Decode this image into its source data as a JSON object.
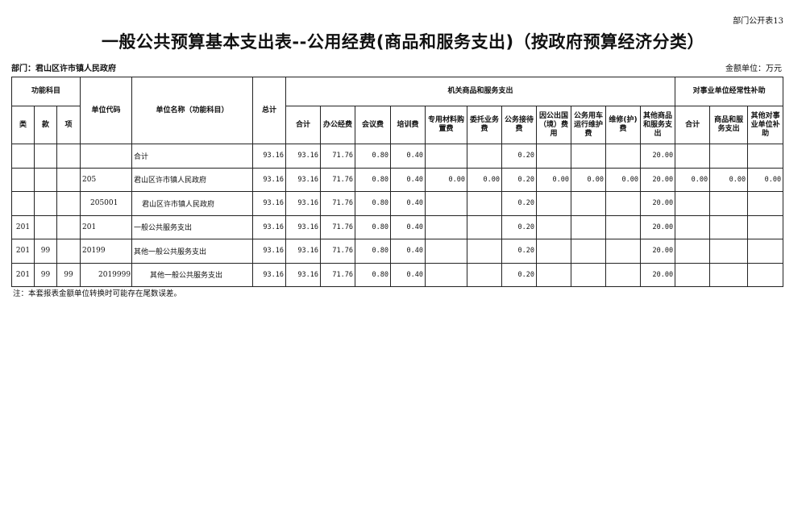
{
  "form_no": "部门公开表13",
  "title": "一般公共预算基本支出表--公用经费(商品和服务支出)（按政府预算经济分类）",
  "department": "部门：君山区许市镇人民政府",
  "unit": "金额单位：万元",
  "headers": {
    "func_subject": "功能科目",
    "lei": "类",
    "kuan": "款",
    "xiang": "项",
    "unit_code": "单位代码",
    "unit_name": "单位名称（功能科目）",
    "total": "总计",
    "group1": "机关商品和服务支出",
    "group2": "对事业单位经常性补助",
    "cols1": [
      "合计",
      "办公经费",
      "会议费",
      "培训费",
      "专用材料购置费",
      "委托业务费",
      "公务接待费",
      "因公出国（境）费用",
      "公务用车运行维护费",
      "维修(护)费",
      "其他商品和服务支出"
    ],
    "cols2": [
      "合计",
      "商品和服务支出",
      "其他对事业单位补助"
    ]
  },
  "rows": [
    {
      "lei": "",
      "kuan": "",
      "xiang": "",
      "code": "",
      "name": "合计",
      "indent": 0,
      "values": [
        "93.16",
        "93.16",
        "71.76",
        "0.80",
        "0.40",
        "",
        "",
        "0.20",
        "",
        "",
        "",
        "20.00",
        "",
        "",
        ""
      ]
    },
    {
      "lei": "",
      "kuan": "",
      "xiang": "",
      "code": "205",
      "name": "君山区许市镇人民政府",
      "indent": 0,
      "values": [
        "93.16",
        "93.16",
        "71.76",
        "0.80",
        "0.40",
        "0.00",
        "0.00",
        "0.20",
        "0.00",
        "0.00",
        "0.00",
        "20.00",
        "0.00",
        "0.00",
        "0.00"
      ]
    },
    {
      "lei": "",
      "kuan": "",
      "xiang": "",
      "code": "205001",
      "name": "君山区许市镇人民政府",
      "indent": 1,
      "values": [
        "93.16",
        "93.16",
        "71.76",
        "0.80",
        "0.40",
        "",
        "",
        "0.20",
        "",
        "",
        "",
        "20.00",
        "",
        "",
        ""
      ]
    },
    {
      "lei": "201",
      "kuan": "",
      "xiang": "",
      "code": "201",
      "name": "一般公共服务支出",
      "indent": 0,
      "values": [
        "93.16",
        "93.16",
        "71.76",
        "0.80",
        "0.40",
        "",
        "",
        "0.20",
        "",
        "",
        "",
        "20.00",
        "",
        "",
        ""
      ]
    },
    {
      "lei": "201",
      "kuan": "99",
      "xiang": "",
      "code": "20199",
      "name": "其他一般公共服务支出",
      "indent": 0,
      "values": [
        "93.16",
        "93.16",
        "71.76",
        "0.80",
        "0.40",
        "",
        "",
        "0.20",
        "",
        "",
        "",
        "20.00",
        "",
        "",
        ""
      ]
    },
    {
      "lei": "201",
      "kuan": "99",
      "xiang": "99",
      "code": "2019999",
      "name": "其他一般公共服务支出",
      "indent": 2,
      "values": [
        "93.16",
        "93.16",
        "71.76",
        "0.80",
        "0.40",
        "",
        "",
        "0.20",
        "",
        "",
        "",
        "20.00",
        "",
        "",
        ""
      ]
    }
  ],
  "note": "注：本套报表金额单位转换时可能存在尾数误差。"
}
